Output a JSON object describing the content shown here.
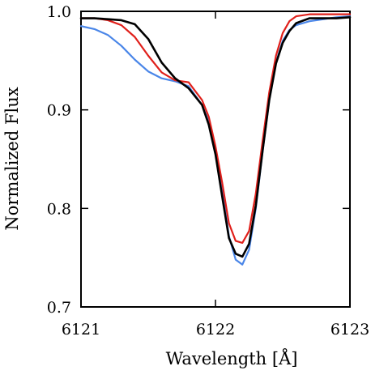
{
  "chart_data": {
    "type": "line",
    "title": "",
    "xlabel": "Wavelength [Å]",
    "ylabel": "Normalized Flux",
    "xlim": [
      6121,
      6123
    ],
    "ylim": [
      0.7,
      1.0
    ],
    "xticks": [
      6121,
      6122,
      6123
    ],
    "xtick_labels": [
      "6121",
      "6122",
      "6123"
    ],
    "yticks": [
      0.7,
      0.8,
      0.9,
      1.0
    ],
    "ytick_labels": [
      "0.7",
      "0.8",
      "0.9",
      "1.0"
    ],
    "grid": false,
    "legend": null,
    "series": [
      {
        "color": "#4a86e8",
        "x": [
          6121.0,
          6121.1,
          6121.2,
          6121.3,
          6121.4,
          6121.5,
          6121.6,
          6121.7,
          6121.8,
          6121.9,
          6121.95,
          6122.0,
          6122.05,
          6122.1,
          6122.15,
          6122.2,
          6122.25,
          6122.3,
          6122.35,
          6122.4,
          6122.45,
          6122.5,
          6122.55,
          6122.6,
          6122.7,
          6122.8,
          6122.9,
          6123.0
        ],
        "y": [
          0.985,
          0.982,
          0.976,
          0.965,
          0.951,
          0.939,
          0.932,
          0.929,
          0.924,
          0.905,
          0.888,
          0.86,
          0.818,
          0.772,
          0.748,
          0.743,
          0.758,
          0.8,
          0.857,
          0.91,
          0.948,
          0.97,
          0.981,
          0.986,
          0.99,
          0.992,
          0.994,
          0.995
        ]
      },
      {
        "color": "#e0201b",
        "x": [
          6121.0,
          6121.1,
          6121.2,
          6121.3,
          6121.4,
          6121.5,
          6121.6,
          6121.7,
          6121.8,
          6121.9,
          6121.95,
          6122.0,
          6122.05,
          6122.1,
          6122.15,
          6122.2,
          6122.25,
          6122.3,
          6122.35,
          6122.4,
          6122.45,
          6122.5,
          6122.55,
          6122.6,
          6122.7,
          6122.8,
          6122.9,
          6123.0
        ],
        "y": [
          0.993,
          0.993,
          0.991,
          0.986,
          0.974,
          0.955,
          0.938,
          0.93,
          0.928,
          0.91,
          0.893,
          0.863,
          0.826,
          0.785,
          0.767,
          0.765,
          0.777,
          0.815,
          0.868,
          0.918,
          0.955,
          0.978,
          0.99,
          0.995,
          0.997,
          0.997,
          0.997,
          0.997
        ]
      },
      {
        "color": "#000000",
        "x": [
          6121.0,
          6121.1,
          6121.2,
          6121.3,
          6121.4,
          6121.5,
          6121.6,
          6121.7,
          6121.8,
          6121.9,
          6121.95,
          6122.0,
          6122.05,
          6122.1,
          6122.15,
          6122.2,
          6122.25,
          6122.3,
          6122.35,
          6122.4,
          6122.45,
          6122.5,
          6122.55,
          6122.6,
          6122.7,
          6122.8,
          6122.9,
          6123.0
        ],
        "y": [
          0.993,
          0.993,
          0.992,
          0.991,
          0.987,
          0.972,
          0.948,
          0.932,
          0.922,
          0.905,
          0.885,
          0.855,
          0.812,
          0.77,
          0.754,
          0.751,
          0.764,
          0.803,
          0.858,
          0.91,
          0.947,
          0.968,
          0.98,
          0.988,
          0.993,
          0.993,
          0.993,
          0.994
        ]
      }
    ]
  }
}
